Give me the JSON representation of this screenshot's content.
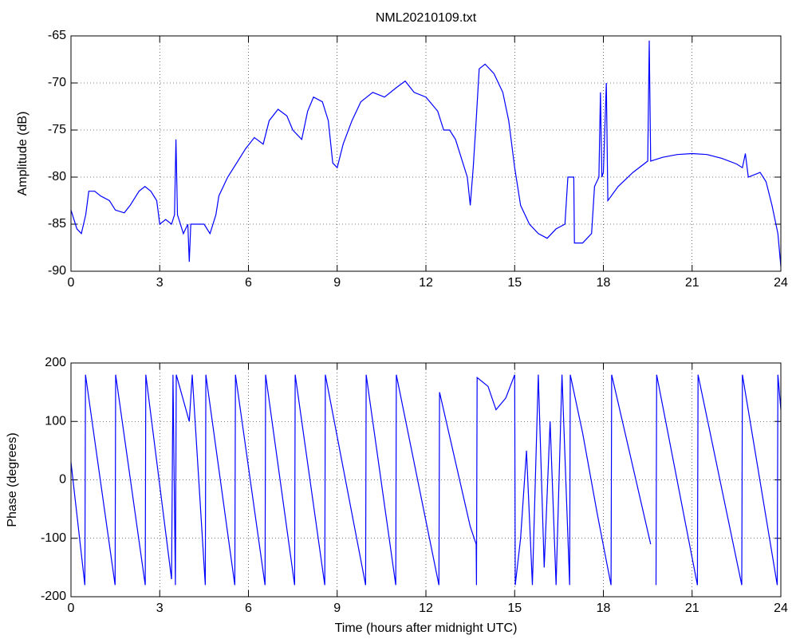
{
  "chart_data": [
    {
      "type": "line",
      "title": "NML20210109.txt",
      "ylabel": "Amplitude (dB)",
      "x": [
        0,
        0.2,
        0.35,
        0.5,
        0.6,
        0.8,
        1.0,
        1.3,
        1.5,
        1.8,
        2.0,
        2.3,
        2.5,
        2.7,
        2.9,
        3.0,
        3.2,
        3.4,
        3.5,
        3.55,
        3.6,
        3.8,
        3.95,
        4.0,
        4.05,
        4.3,
        4.5,
        4.7,
        4.9,
        5.0,
        5.3,
        5.6,
        5.9,
        6.2,
        6.5,
        6.7,
        7.0,
        7.3,
        7.5,
        7.8,
        8.0,
        8.2,
        8.5,
        8.7,
        8.85,
        9.0,
        9.2,
        9.5,
        9.8,
        10.2,
        10.6,
        11.0,
        11.3,
        11.6,
        12.0,
        12.4,
        12.6,
        12.8,
        13.0,
        13.2,
        13.4,
        13.5,
        13.6,
        13.7,
        13.8,
        14.0,
        14.3,
        14.6,
        14.8,
        15.0,
        15.2,
        15.5,
        15.8,
        16.1,
        16.4,
        16.7,
        16.8,
        17.0,
        17.02,
        17.3,
        17.6,
        17.7,
        17.85,
        17.9,
        17.95,
        18.0,
        18.1,
        18.15,
        18.5,
        19.0,
        19.5,
        19.55,
        19.6,
        20.0,
        20.5,
        21.0,
        21.5,
        22.0,
        22.5,
        22.7,
        22.8,
        22.9,
        23.3,
        23.5,
        23.7,
        23.9,
        24.0
      ],
      "series": [
        {
          "color": "#0000ff",
          "values": [
            -83.5,
            -85.5,
            -86,
            -84,
            -81.5,
            -81.5,
            -82,
            -82.5,
            -83.5,
            -83.8,
            -83,
            -81.5,
            -81,
            -81.5,
            -82.5,
            -85,
            -84.5,
            -85,
            -84,
            -76,
            -84,
            -86,
            -85,
            -89,
            -85,
            -85,
            -85,
            -86,
            -84,
            -82,
            -80,
            -78.5,
            -77,
            -75.8,
            -76.5,
            -74,
            -72.8,
            -73.5,
            -75,
            -76,
            -73,
            -71.5,
            -72,
            -74,
            -78.5,
            -79,
            -76.5,
            -74,
            -72,
            -71,
            -71.5,
            -70.5,
            -69.8,
            -71,
            -71.5,
            -73,
            -75,
            -75,
            -76,
            -78,
            -80,
            -83,
            -79,
            -74,
            -68.5,
            -68,
            -69,
            -71,
            -74,
            -79,
            -83,
            -85,
            -86,
            -86.5,
            -85.5,
            -85,
            -80,
            -80,
            -87,
            -87,
            -86,
            -81,
            -80,
            -71,
            -80,
            -79.5,
            -70,
            -82.5,
            -81,
            -79.5,
            -78.3,
            -65.5,
            -78.3,
            -77.9,
            -77.6,
            -77.5,
            -77.6,
            -78,
            -78.6,
            -79,
            -77.5,
            -80,
            -79.5,
            -80.5,
            -83,
            -86,
            -89.5
          ]
        }
      ],
      "xlim": [
        0,
        24
      ],
      "xticks": [
        0,
        3,
        6,
        9,
        12,
        15,
        18,
        21,
        24
      ],
      "ylim": [
        -90,
        -65
      ],
      "yticks": [
        -90,
        -85,
        -80,
        -75,
        -70,
        -65
      ],
      "grid": true
    },
    {
      "type": "line",
      "ylabel": "Phase (degrees)",
      "xlabel": "Time (hours after midnight UTC)",
      "x": [
        0,
        0.47,
        0.49,
        1.49,
        1.51,
        2.51,
        2.53,
        3.4,
        3.45,
        3.53,
        3.56,
        4.0,
        4.1,
        4.54,
        4.56,
        5.54,
        5.56,
        6.56,
        6.58,
        7.56,
        7.58,
        8.58,
        8.6,
        9.96,
        9.98,
        10.98,
        11.0,
        12.44,
        12.46,
        13.5,
        13.7,
        13.71,
        13.73,
        14.1,
        14.37,
        14.7,
        15.0,
        15.02,
        15.2,
        15.4,
        15.6,
        15.8,
        16.0,
        16.2,
        16.4,
        16.6,
        16.86,
        16.88,
        17.3,
        17.8,
        18.26,
        18.28,
        19.6,
        19.7,
        19.78,
        19.8,
        21.18,
        21.2,
        22.68,
        22.7,
        23.88,
        23.9,
        24.0
      ],
      "series": [
        {
          "color": "#0000ff",
          "values": [
            30,
            -180,
            180,
            -180,
            180,
            -180,
            180,
            -170,
            180,
            -180,
            180,
            100,
            180,
            -180,
            180,
            -180,
            180,
            -180,
            180,
            -180,
            180,
            -180,
            180,
            -180,
            180,
            -180,
            180,
            -180,
            150,
            -80,
            -110,
            -180,
            175,
            160,
            120,
            140,
            180,
            -180,
            -100,
            50,
            -180,
            180,
            -150,
            100,
            -180,
            180,
            -180,
            180,
            80,
            -60,
            -180,
            180,
            -110,
            null,
            -180,
            180,
            -180,
            180,
            -180,
            180,
            -180,
            180,
            120
          ]
        }
      ],
      "xlim": [
        0,
        24
      ],
      "xticks": [
        0,
        3,
        6,
        9,
        12,
        15,
        18,
        21,
        24
      ],
      "ylim": [
        -200,
        200
      ],
      "yticks": [
        -200,
        -100,
        0,
        100,
        200
      ],
      "grid": true
    }
  ]
}
